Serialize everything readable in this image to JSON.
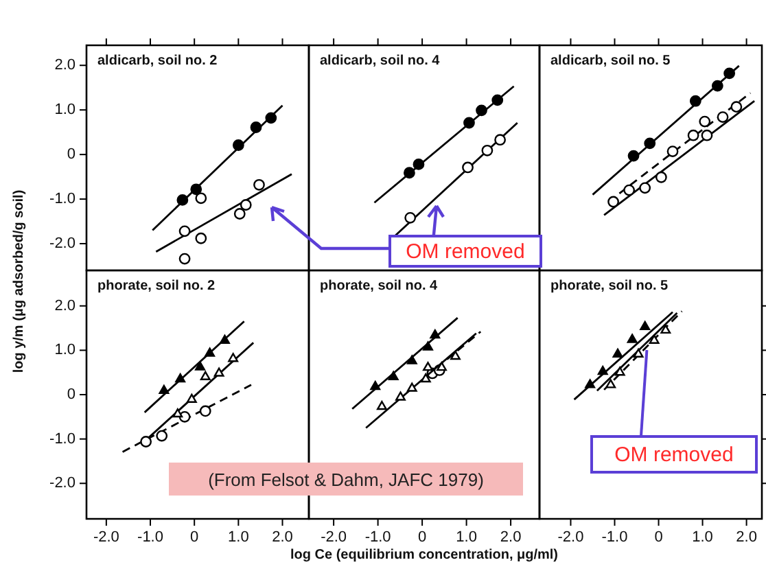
{
  "chart_data": [
    {
      "type": "scatter",
      "title": "aldicarb, soil no. 2",
      "ylabel": "log y/m (μg adsorbed/g soil)",
      "annotations": [
        "OM removed"
      ],
      "tick_labels": "y",
      "xlim": [
        -2.45,
        2.6
      ],
      "ylim": [
        -2.6,
        2.45
      ],
      "xticks": [
        {
          "value": -2,
          "label": null
        },
        {
          "value": -1,
          "label": null
        },
        {
          "value": 0,
          "label": null
        },
        {
          "value": 1,
          "label": null
        },
        {
          "value": 2,
          "label": null
        }
      ],
      "yticks": [
        {
          "value": -2,
          "label": "-2.0"
        },
        {
          "value": -1,
          "label": "-1.0"
        },
        {
          "value": 0,
          "label": "0"
        },
        {
          "value": 1,
          "label": "1.0"
        },
        {
          "value": 2,
          "label": "2.0"
        }
      ],
      "series": [
        {
          "color": "#000000",
          "marker": "circle",
          "x": [
            -0.27,
            0.04,
            1.0,
            1.4,
            1.74
          ],
          "values": [
            -1.02,
            -0.78,
            0.21,
            0.61,
            0.82
          ]
        },
        {
          "type": "line",
          "color": "#000000",
          "marker": "none",
          "line_style": "solid",
          "x": [
            -0.95,
            2.0
          ],
          "values": [
            -1.7,
            1.1
          ]
        },
        {
          "color": "#000000",
          "marker": "circle",
          "x": [
            -0.22,
            0.15,
            0.15,
            -0.22,
            1.03,
            1.17,
            1.47
          ],
          "values": [
            -1.72,
            -0.98,
            -1.88,
            -2.34,
            -1.33,
            -1.13,
            -0.68
          ]
        },
        {
          "type": "line",
          "color": "#000000",
          "marker": "none",
          "line_style": "solid",
          "x": [
            -0.87,
            2.21
          ],
          "values": [
            -2.18,
            -0.44
          ]
        }
      ]
    },
    {
      "type": "scatter",
      "title": "aldicarb, soil no. 4",
      "tick_labels": false,
      "xlim": [
        -2.56,
        2.65
      ],
      "ylim": [
        -2.6,
        2.45
      ],
      "xticks": [
        {
          "value": -2,
          "label": null
        },
        {
          "value": -1,
          "label": null
        },
        {
          "value": 0,
          "label": null
        },
        {
          "value": 1,
          "label": null
        },
        {
          "value": 2,
          "label": null
        }
      ],
      "series": [
        {
          "color": "#000000",
          "marker": "circle",
          "x": [
            -0.29,
            -0.08,
            1.06,
            1.34,
            1.7
          ],
          "values": [
            -0.41,
            -0.22,
            0.71,
            0.99,
            1.22
          ]
        },
        {
          "type": "line",
          "color": "#000000",
          "marker": "none",
          "line_style": "solid",
          "x": [
            -1.08,
            2.07
          ],
          "values": [
            -1.08,
            1.53
          ]
        },
        {
          "color": "#000000",
          "marker": "circle",
          "x": [
            -0.27,
            1.03,
            1.47,
            1.76
          ],
          "values": [
            -1.42,
            -0.29,
            0.09,
            0.33
          ]
        },
        {
          "type": "line",
          "color": "#000000",
          "marker": "none",
          "line_style": "solid",
          "x": [
            -0.6,
            2.15
          ],
          "values": [
            -1.81,
            0.71
          ]
        }
      ]
    },
    {
      "type": "scatter",
      "title": "aldicarb, soil no. 5",
      "tick_labels": false,
      "xlim": [
        -2.71,
        2.35
      ],
      "ylim": [
        -2.6,
        2.45
      ],
      "xticks": [
        {
          "value": -2,
          "label": null
        },
        {
          "value": -1,
          "label": null
        },
        {
          "value": 0,
          "label": null
        },
        {
          "value": 1,
          "label": null
        },
        {
          "value": 2,
          "label": null
        }
      ],
      "series": [
        {
          "color": "#000000",
          "marker": "circle",
          "x": [
            -0.57,
            -0.2,
            0.84,
            1.34,
            1.61
          ],
          "values": [
            -0.03,
            0.25,
            1.2,
            1.54,
            1.82
          ]
        },
        {
          "type": "line",
          "color": "#000000",
          "marker": "none",
          "line_style": "solid",
          "x": [
            -1.5,
            1.83
          ],
          "values": [
            -0.9,
            1.99
          ]
        },
        {
          "color": "#000000",
          "marker": "circle",
          "x": [
            -1.03,
            -0.67,
            -0.31,
            0.06,
            0.32,
            0.79,
            1.05,
            1.1,
            1.46,
            1.77
          ],
          "values": [
            -1.06,
            -0.8,
            -0.75,
            -0.51,
            0.07,
            0.43,
            0.74,
            0.43,
            0.84,
            1.07
          ]
        },
        {
          "type": "line",
          "color": "#000000",
          "marker": "none",
          "line_style": "dashed",
          "x": [
            -1.14,
            2.09
          ],
          "values": [
            -1.06,
            1.38
          ]
        },
        {
          "type": "line",
          "color": "#000000",
          "marker": "none",
          "line_style": "solid",
          "x": [
            -1.24,
            2.18
          ],
          "values": [
            -1.36,
            1.2
          ]
        }
      ]
    },
    {
      "type": "scatter",
      "title": "phorate, soil no. 2",
      "annotations": [
        "(From Felsot & Dahm, JAFC 1979)"
      ],
      "xlim": [
        -2.45,
        2.6
      ],
      "ylim": [
        -2.8,
        2.8
      ],
      "xticks": [
        {
          "value": -2,
          "label": "-2.0"
        },
        {
          "value": -1,
          "label": "-1.0"
        },
        {
          "value": 0,
          "label": "0"
        },
        {
          "value": 1,
          "label": "1.0"
        },
        {
          "value": 2,
          "label": "2.0"
        }
      ],
      "yticks": [
        {
          "value": -2,
          "label": "-2.0"
        },
        {
          "value": -1,
          "label": "-1.0"
        },
        {
          "value": 0,
          "label": "0"
        },
        {
          "value": 1,
          "label": "1.0"
        },
        {
          "value": 2,
          "label": "2.0"
        }
      ],
      "series": [
        {
          "color": "#000000",
          "marker": "triangle",
          "x": [
            -0.69,
            -0.32,
            0.13,
            0.35,
            0.69
          ],
          "values": [
            0.09,
            0.35,
            0.62,
            0.93,
            1.22
          ]
        },
        {
          "type": "line",
          "color": "#000000",
          "marker": "none",
          "line_style": "solid",
          "x": [
            -1.13,
            1.13
          ],
          "values": [
            -0.4,
            1.65
          ]
        },
        {
          "color": "#000000",
          "marker": "triangle",
          "x": [
            -0.38,
            -0.06,
            0.25,
            0.56,
            0.88
          ],
          "values": [
            -0.44,
            -0.11,
            0.4,
            0.48,
            0.81
          ]
        },
        {
          "type": "line",
          "color": "#000000",
          "marker": "none",
          "line_style": "solid",
          "x": [
            -1.05,
            1.34
          ],
          "values": [
            -0.98,
            1.17
          ]
        },
        {
          "color": "#000000",
          "marker": "circle",
          "x": [
            -1.1,
            -0.74,
            -0.22,
            0.25
          ],
          "values": [
            -1.06,
            -0.93,
            -0.5,
            -0.37
          ]
        },
        {
          "type": "line",
          "color": "#000000",
          "marker": "none",
          "line_style": "dashed",
          "x": [
            -1.63,
            1.29
          ],
          "values": [
            -1.29,
            0.22
          ]
        }
      ]
    },
    {
      "type": "scatter",
      "title": "phorate, soil no. 4",
      "xlabel": "log Ce (equilibrium concentration, μg/ml)",
      "tick_labels": "x",
      "xlim": [
        -2.56,
        2.65
      ],
      "ylim": [
        -2.8,
        2.8
      ],
      "xticks": [
        {
          "value": -2,
          "label": "-2.0"
        },
        {
          "value": -1,
          "label": "-1.0"
        },
        {
          "value": 0,
          "label": "0"
        },
        {
          "value": 1,
          "label": "1.0"
        },
        {
          "value": 2,
          "label": "2.0"
        }
      ],
      "series": [
        {
          "color": "#000000",
          "marker": "triangle",
          "x": [
            -1.06,
            -0.65,
            -0.23,
            0.13,
            0.29
          ],
          "values": [
            0.18,
            0.4,
            0.76,
            1.07,
            1.34
          ]
        },
        {
          "type": "line",
          "color": "#000000",
          "marker": "none",
          "line_style": "solid",
          "x": [
            -1.58,
            0.8
          ],
          "values": [
            -0.32,
            1.73
          ]
        },
        {
          "color": "#000000",
          "marker": "triangle",
          "x": [
            -0.91,
            -0.49,
            -0.23,
            0.08,
            0.13,
            0.44,
            0.75
          ],
          "values": [
            -0.27,
            -0.06,
            0.14,
            0.35,
            0.61,
            0.61,
            0.86
          ]
        },
        {
          "type": "line",
          "color": "#000000",
          "marker": "none",
          "line_style": "solid",
          "x": [
            -1.27,
            1.22
          ],
          "values": [
            -0.75,
            1.38
          ]
        },
        {
          "color": "#000000",
          "marker": "circle",
          "x": [
            0.23,
            0.39
          ],
          "values": [
            0.48,
            0.55
          ]
        },
        {
          "type": "line",
          "color": "#000000",
          "marker": "none",
          "line_style": "dashed",
          "x": [
            0.08,
            1.32
          ],
          "values": [
            0.4,
            1.42
          ]
        }
      ]
    },
    {
      "type": "scatter",
      "title": "phorate, soil no. 5",
      "annotations": [
        {
          "text": "OM removed",
          "x": -0.28,
          "y": 1.02
        }
      ],
      "tick_labels": "x",
      "xlim": [
        -2.71,
        2.35
      ],
      "ylim": [
        -2.8,
        2.8
      ],
      "xticks": [
        {
          "value": -2,
          "label": "-2.0"
        },
        {
          "value": -1,
          "label": "-1.0"
        },
        {
          "value": 0,
          "label": "0"
        },
        {
          "value": 1,
          "label": "1.0"
        },
        {
          "value": 2,
          "label": "2.0"
        }
      ],
      "yticks": [
        {
          "value": -2,
          "label": null
        },
        {
          "value": -1,
          "label": null
        },
        {
          "value": 0,
          "label": null
        },
        {
          "value": 1,
          "label": null
        },
        {
          "value": 2,
          "label": null
        }
      ],
      "series": [
        {
          "color": "#000000",
          "marker": "triangle",
          "x": [
            -1.56,
            -1.27,
            -0.93,
            -0.6,
            -0.31
          ],
          "values": [
            0.22,
            0.52,
            0.91,
            1.24,
            1.53
          ]
        },
        {
          "type": "line",
          "color": "#000000",
          "marker": "none",
          "line_style": "solid",
          "x": [
            -1.92,
            0.32
          ],
          "values": [
            -0.11,
            1.86
          ]
        },
        {
          "color": "#000000",
          "marker": "triangle",
          "x": [
            -1.09,
            -0.88,
            -0.46,
            -0.1,
            0.16
          ],
          "values": [
            0.22,
            0.5,
            0.91,
            1.22,
            1.45
          ]
        },
        {
          "type": "line",
          "color": "#000000",
          "marker": "none",
          "line_style": "solid",
          "x": [
            -1.4,
            0.42
          ],
          "values": [
            0.09,
            1.84
          ]
        },
        {
          "type": "line",
          "color": "#000000",
          "marker": "none",
          "line_style": "dashed",
          "x": [
            -1.24,
            0.53
          ],
          "values": [
            0.11,
            1.88
          ]
        }
      ]
    }
  ]
}
